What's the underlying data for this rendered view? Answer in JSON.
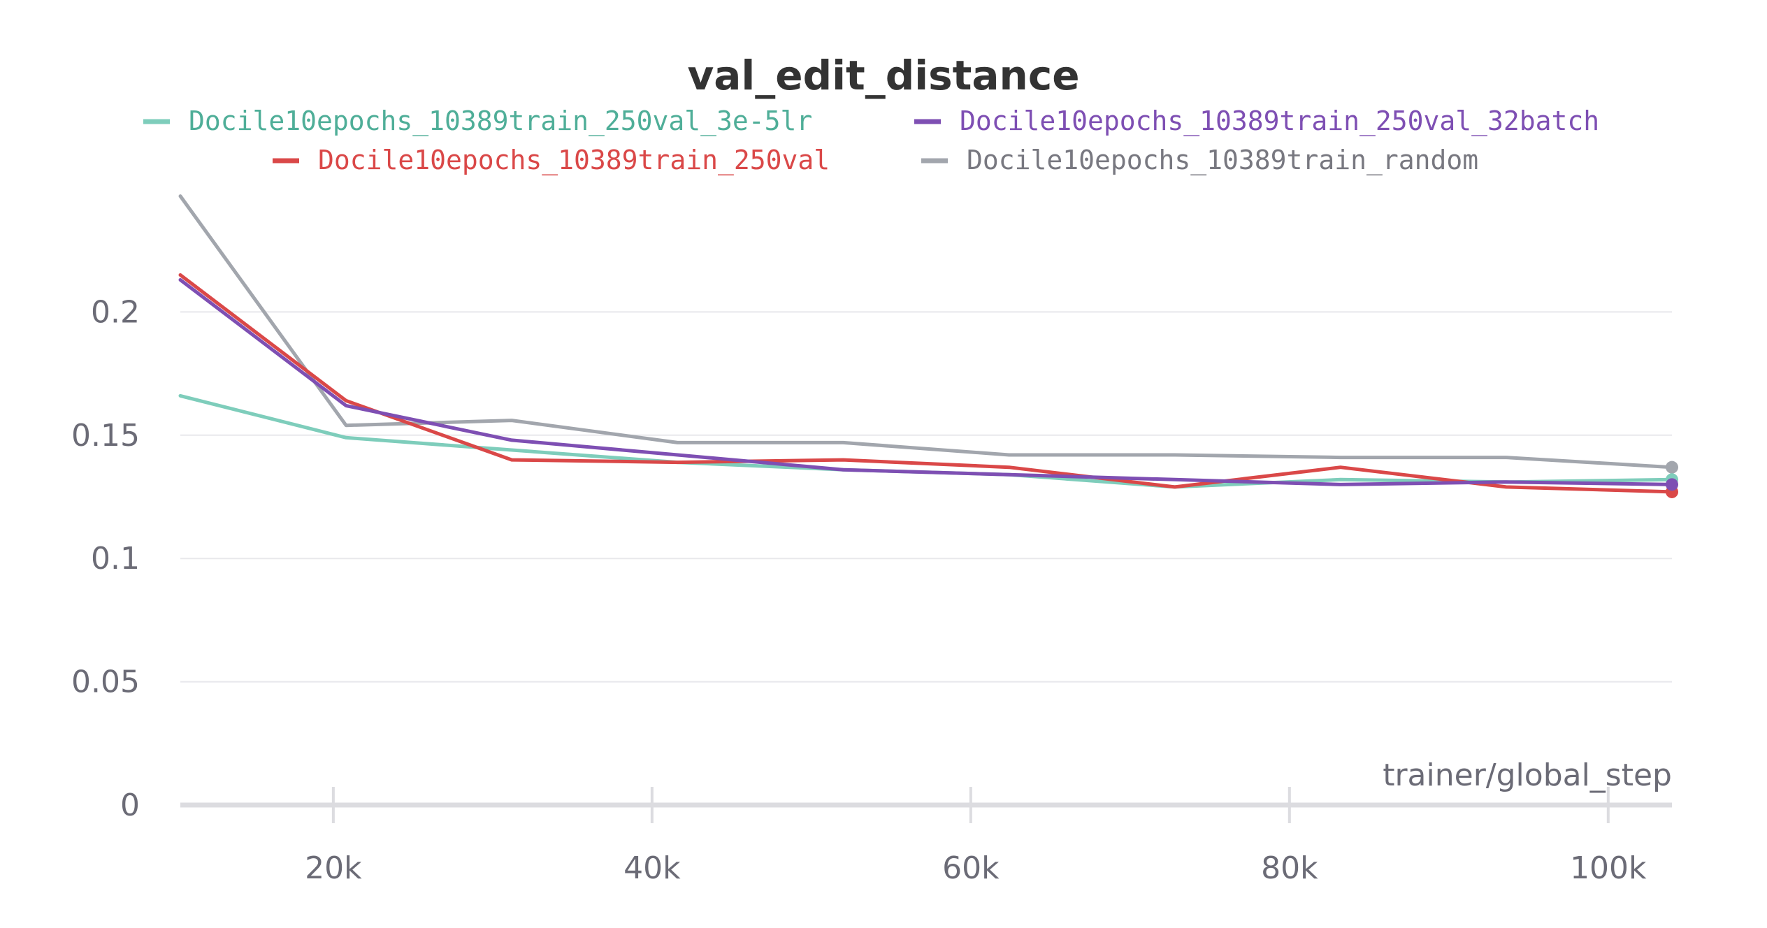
{
  "chart_data": {
    "type": "line",
    "title": "val_edit_distance",
    "xlabel": "trainer/global_step",
    "ylabel": "",
    "xlim": [
      10400,
      104000
    ],
    "ylim": [
      0,
      0.25
    ],
    "x_ticks": [
      20000,
      40000,
      60000,
      80000,
      100000
    ],
    "x_tick_labels": [
      "20k",
      "40k",
      "60k",
      "80k",
      "100k"
    ],
    "y_ticks": [
      0,
      0.05,
      0.1,
      0.15,
      0.2
    ],
    "y_tick_labels": [
      "0",
      "0.05",
      "0.1",
      "0.15",
      "0.2"
    ],
    "grid": "horizontal",
    "legend": "top",
    "series": [
      {
        "name": "Docile10epochs_10389train_250val_3e-5lr",
        "color": "#7ecdbb",
        "label_color": "#4fae98",
        "x": [
          10400,
          20800,
          31200,
          41600,
          52000,
          62400,
          72800,
          83200,
          93600,
          104000
        ],
        "y": [
          0.166,
          0.149,
          0.144,
          0.139,
          0.136,
          0.134,
          0.129,
          0.132,
          0.131,
          0.132
        ]
      },
      {
        "name": "Docile10epochs_10389train_250val_32batch",
        "color": "#7e4fb3",
        "label_color": "#7e4fb3",
        "x": [
          10400,
          20800,
          31200,
          41600,
          52000,
          62400,
          72800,
          83200,
          93600,
          104000
        ],
        "y": [
          0.213,
          0.162,
          0.148,
          0.142,
          0.136,
          0.134,
          0.132,
          0.13,
          0.131,
          0.13
        ]
      },
      {
        "name": "Docile10epochs_10389train_250val",
        "color": "#da4848",
        "label_color": "#da4848",
        "x": [
          10400,
          20800,
          31200,
          41600,
          52000,
          62400,
          72800,
          83200,
          93600,
          104000
        ],
        "y": [
          0.215,
          0.164,
          0.14,
          0.139,
          0.14,
          0.137,
          0.129,
          0.137,
          0.129,
          0.127
        ]
      },
      {
        "name": "Docile10epochs_10389train_random",
        "color": "#a2a6ad",
        "label_color": "#787880",
        "x": [
          10400,
          20800,
          31200,
          41600,
          52000,
          62400,
          72800,
          83200,
          93600,
          104000
        ],
        "y": [
          0.247,
          0.154,
          0.156,
          0.147,
          0.147,
          0.142,
          0.142,
          0.141,
          0.141,
          0.137
        ]
      }
    ]
  }
}
